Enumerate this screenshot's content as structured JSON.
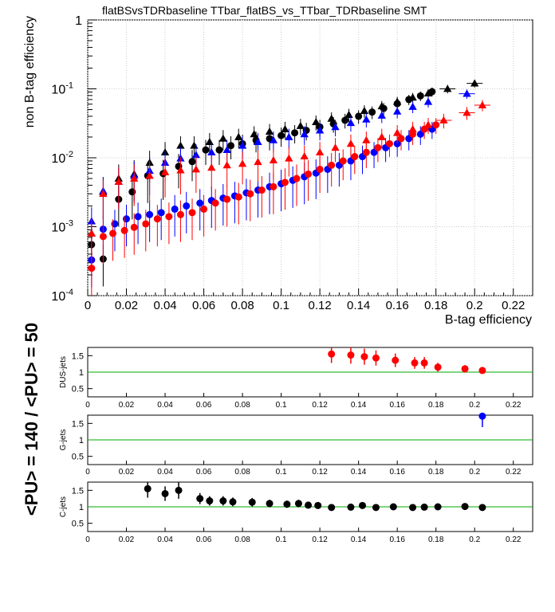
{
  "colors": {
    "dus": "#ff0000",
    "g": "#0000ff",
    "c": "#000000",
    "ratio_line": "#00aa00"
  },
  "markers": {
    "pu140": "circle",
    "pu50": "triangle"
  },
  "side_label": "<PU> = 140 / <PU> = 50",
  "chart_data": [
    {
      "type": "scatter",
      "title": "flatBSvsTDRbaseline TTbar_flatBS_vs_TTbar_TDRbaseline SMT",
      "xlabel": "B-tag efficiency",
      "ylabel": "non B-tag efficiency",
      "xlim": [
        0,
        0.23
      ],
      "ylim": [
        0.0001,
        1
      ],
      "yscale": "log",
      "grid": true,
      "x_ticks": [
        "0",
        "0.02",
        "0.04",
        "0.06",
        "0.08",
        "0.1",
        "0.12",
        "0.14",
        "0.16",
        "0.18",
        "0.2",
        "0.22"
      ],
      "y_ticks": [
        {
          "value": 0.0001,
          "base": "10",
          "exp": "-4"
        },
        {
          "value": 0.001,
          "base": "10",
          "exp": "-3"
        },
        {
          "value": 0.01,
          "base": "10",
          "exp": "-2"
        },
        {
          "value": 0.1,
          "base": "10",
          "exp": "-1"
        },
        {
          "value": 1,
          "base": "1",
          "exp": ""
        }
      ],
      "series": [
        {
          "flavor": "c",
          "marker": "circle",
          "x": [
            0.002,
            0.008,
            0.016,
            0.023,
            0.031,
            0.039,
            0.047,
            0.054,
            0.061,
            0.068,
            0.074,
            0.08,
            0.087,
            0.094,
            0.1,
            0.107,
            0.113,
            0.12,
            0.127,
            0.133,
            0.14,
            0.147,
            0.153,
            0.16,
            0.166,
            0.172,
            0.178
          ],
          "y": [
            0.00055,
            0.00034,
            0.0025,
            0.0032,
            0.0055,
            0.0059,
            0.0075,
            0.0088,
            0.013,
            0.013,
            0.015,
            0.016,
            0.018,
            0.019,
            0.021,
            0.023,
            0.025,
            0.028,
            0.031,
            0.035,
            0.04,
            0.046,
            0.052,
            0.061,
            0.07,
            0.079,
            0.091
          ]
        },
        {
          "flavor": "c",
          "marker": "triangle",
          "x": [
            0.002,
            0.008,
            0.016,
            0.024,
            0.032,
            0.04,
            0.048,
            0.055,
            0.063,
            0.07,
            0.078,
            0.086,
            0.094,
            0.102,
            0.11,
            0.118,
            0.126,
            0.135,
            0.143,
            0.152,
            0.16,
            0.168,
            0.176,
            0.186,
            0.2
          ],
          "y": [
            0.0008,
            0.0032,
            0.005,
            0.0058,
            0.0085,
            0.012,
            0.015,
            0.015,
            0.017,
            0.019,
            0.02,
            0.022,
            0.024,
            0.026,
            0.029,
            0.033,
            0.037,
            0.042,
            0.048,
            0.056,
            0.065,
            0.075,
            0.086,
            0.1,
            0.12
          ]
        },
        {
          "flavor": "g",
          "marker": "circle",
          "x": [
            0.002,
            0.008,
            0.014,
            0.02,
            0.026,
            0.032,
            0.038,
            0.045,
            0.051,
            0.058,
            0.064,
            0.07,
            0.076,
            0.082,
            0.088,
            0.094,
            0.1,
            0.106,
            0.112,
            0.118,
            0.124,
            0.13,
            0.136,
            0.142,
            0.148,
            0.154,
            0.16,
            0.166,
            0.172,
            0.178
          ],
          "y": [
            0.00033,
            0.00092,
            0.0011,
            0.0013,
            0.0014,
            0.0015,
            0.0016,
            0.0018,
            0.002,
            0.0022,
            0.0024,
            0.0026,
            0.0028,
            0.0031,
            0.0034,
            0.0038,
            0.0042,
            0.0047,
            0.0053,
            0.006,
            0.0068,
            0.0078,
            0.009,
            0.0104,
            0.012,
            0.014,
            0.016,
            0.019,
            0.022,
            0.026
          ]
        },
        {
          "flavor": "g",
          "marker": "triangle",
          "x": [
            0.002,
            0.008,
            0.016,
            0.024,
            0.032,
            0.04,
            0.048,
            0.056,
            0.064,
            0.072,
            0.08,
            0.088,
            0.096,
            0.104,
            0.112,
            0.12,
            0.128,
            0.136,
            0.144,
            0.152,
            0.16,
            0.168,
            0.176,
            0.196
          ],
          "y": [
            0.0012,
            0.0033,
            0.0045,
            0.0055,
            0.0065,
            0.0085,
            0.0098,
            0.011,
            0.012,
            0.013,
            0.015,
            0.017,
            0.018,
            0.02,
            0.022,
            0.025,
            0.028,
            0.032,
            0.036,
            0.041,
            0.047,
            0.055,
            0.065,
            0.085
          ]
        },
        {
          "flavor": "dus",
          "marker": "circle",
          "x": [
            0.002,
            0.008,
            0.013,
            0.019,
            0.024,
            0.03,
            0.036,
            0.042,
            0.048,
            0.054,
            0.06,
            0.066,
            0.072,
            0.078,
            0.084,
            0.09,
            0.096,
            0.102,
            0.108,
            0.114,
            0.12,
            0.126,
            0.132,
            0.138,
            0.144,
            0.15,
            0.156,
            0.162,
            0.168,
            0.174,
            0.18
          ],
          "y": [
            0.00025,
            0.00072,
            0.0008,
            0.00088,
            0.00098,
            0.0011,
            0.0013,
            0.0014,
            0.0015,
            0.0016,
            0.0018,
            0.0022,
            0.0025,
            0.0027,
            0.003,
            0.0034,
            0.0038,
            0.0044,
            0.005,
            0.0058,
            0.0068,
            0.0078,
            0.009,
            0.0104,
            0.012,
            0.014,
            0.016,
            0.019,
            0.022,
            0.026,
            0.03
          ]
        },
        {
          "flavor": "dus",
          "marker": "triangle",
          "x": [
            0.002,
            0.008,
            0.016,
            0.024,
            0.032,
            0.04,
            0.048,
            0.056,
            0.064,
            0.072,
            0.08,
            0.088,
            0.096,
            0.104,
            0.112,
            0.12,
            0.128,
            0.136,
            0.144,
            0.152,
            0.16,
            0.168,
            0.176,
            0.184,
            0.196,
            0.204
          ],
          "y": [
            0.0008,
            0.003,
            0.0045,
            0.005,
            0.0055,
            0.0062,
            0.0066,
            0.0068,
            0.0072,
            0.0078,
            0.0082,
            0.0087,
            0.0092,
            0.0098,
            0.0105,
            0.012,
            0.014,
            0.016,
            0.018,
            0.02,
            0.023,
            0.026,
            0.03,
            0.035,
            0.045,
            0.058
          ]
        }
      ]
    },
    {
      "type": "scatter",
      "ylabel": "DUS-jets",
      "xlim": [
        0,
        0.23
      ],
      "ylim": [
        0.25,
        1.75
      ],
      "x_ticks": [
        "0",
        "0.02",
        "0.04",
        "0.06",
        "0.08",
        "0.1",
        "0.12",
        "0.14",
        "0.16",
        "0.18",
        "0.2",
        "0.22"
      ],
      "y_ticks": [
        "0.5",
        "1",
        "1.5"
      ],
      "reference_line": 1,
      "series": [
        {
          "flavor": "dus",
          "marker": "circle",
          "x": [
            0.126,
            0.136,
            0.143,
            0.149,
            0.159,
            0.169,
            0.174,
            0.181,
            0.195,
            0.204
          ],
          "y": [
            1.55,
            1.52,
            1.47,
            1.43,
            1.36,
            1.28,
            1.28,
            1.15,
            1.1,
            1.05
          ]
        }
      ]
    },
    {
      "type": "scatter",
      "ylabel": "G-jets",
      "xlim": [
        0,
        0.23
      ],
      "ylim": [
        0.25,
        1.75
      ],
      "x_ticks": [
        "0",
        "0.02",
        "0.04",
        "0.06",
        "0.08",
        "0.1",
        "0.12",
        "0.14",
        "0.16",
        "0.18",
        "0.2",
        "0.22"
      ],
      "y_ticks": [
        "0.5",
        "1",
        "1.5"
      ],
      "reference_line": 1,
      "series": [
        {
          "flavor": "g",
          "marker": "circle",
          "x": [
            0.204
          ],
          "y": [
            1.72
          ]
        }
      ]
    },
    {
      "type": "scatter",
      "ylabel": "C-jets",
      "xlim": [
        0,
        0.23
      ],
      "ylim": [
        0.25,
        1.75
      ],
      "x_ticks": [
        "0",
        "0.02",
        "0.04",
        "0.06",
        "0.08",
        "0.1",
        "0.12",
        "0.14",
        "0.16",
        "0.18",
        "0.2",
        "0.22"
      ],
      "y_ticks": [
        "0.5",
        "1",
        "1.5"
      ],
      "reference_line": 1,
      "series": [
        {
          "flavor": "c",
          "marker": "circle",
          "x": [
            0.031,
            0.04,
            0.047,
            0.058,
            0.063,
            0.07,
            0.075,
            0.085,
            0.094,
            0.103,
            0.109,
            0.114,
            0.119,
            0.126,
            0.136,
            0.142,
            0.149,
            0.158,
            0.168,
            0.174,
            0.181,
            0.195,
            0.204
          ],
          "y": [
            1.55,
            1.4,
            1.5,
            1.25,
            1.18,
            1.18,
            1.15,
            1.14,
            1.1,
            1.08,
            1.1,
            1.05,
            1.04,
            0.98,
            0.99,
            1.04,
            0.98,
            1.0,
            0.98,
            0.99,
            1.0,
            1.01,
            0.98
          ]
        }
      ]
    }
  ]
}
